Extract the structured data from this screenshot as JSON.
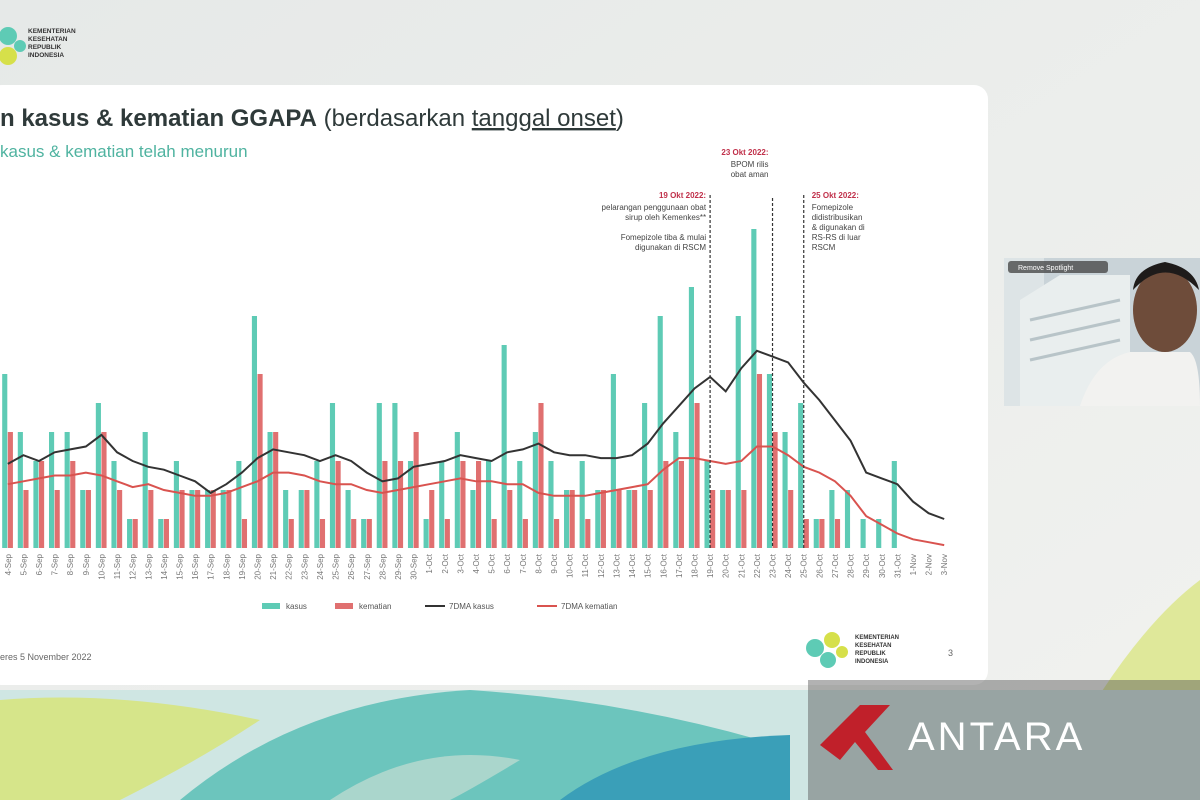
{
  "logo": {
    "lines": [
      "KEMENTERIAN",
      "KESEHATAN",
      "REPUBLIK",
      "INDONESIA"
    ]
  },
  "slide": {
    "title_bold": "n kasus & kematian GGAPA",
    "title_pre": "(berdasarkan",
    "title_underline": "tanggal onset",
    "title_post": ")",
    "subtitle": "kasus & kematian telah menurun",
    "footer": "eres 5 November 2022",
    "page": "3"
  },
  "video": {
    "label": "Remove Spotlight"
  },
  "watermark": {
    "text": "ANTARA"
  },
  "chart_data": {
    "type": "bar",
    "categories": [
      "4-Sep",
      "5-Sep",
      "6-Sep",
      "7-Sep",
      "8-Sep",
      "9-Sep",
      "10-Sep",
      "11-Sep",
      "12-Sep",
      "13-Sep",
      "14-Sep",
      "15-Sep",
      "16-Sep",
      "17-Sep",
      "18-Sep",
      "19-Sep",
      "20-Sep",
      "21-Sep",
      "22-Sep",
      "23-Sep",
      "24-Sep",
      "25-Sep",
      "26-Sep",
      "27-Sep",
      "28-Sep",
      "29-Sep",
      "30-Sep",
      "1-Oct",
      "2-Oct",
      "3-Oct",
      "4-Oct",
      "5-Oct",
      "6-Oct",
      "7-Oct",
      "8-Oct",
      "9-Oct",
      "10-Oct",
      "11-Oct",
      "12-Oct",
      "13-Oct",
      "14-Oct",
      "15-Oct",
      "16-Oct",
      "17-Oct",
      "18-Oct",
      "19-Oct",
      "20-Oct",
      "21-Oct",
      "22-Oct",
      "23-Oct",
      "24-Oct",
      "25-Oct",
      "26-Oct",
      "27-Oct",
      "28-Oct",
      "29-Oct",
      "30-Oct",
      "31-Oct",
      "1-Nov",
      "2-Nov",
      "3-Nov"
    ],
    "ylim": [
      0,
      12
    ],
    "series": [
      {
        "name": "kasus",
        "type": "bar",
        "color": "#5ecbb5",
        "values": [
          6,
          4,
          3,
          4,
          4,
          2,
          5,
          3,
          1,
          4,
          1,
          3,
          2,
          2,
          2,
          3,
          8,
          4,
          2,
          2,
          3,
          5,
          2,
          1,
          5,
          5,
          3,
          1,
          3,
          4,
          2,
          3,
          7,
          3,
          4,
          3,
          2,
          3,
          2,
          6,
          2,
          5,
          8,
          4,
          9,
          3,
          2,
          8,
          11,
          6,
          4,
          5,
          1,
          2,
          2,
          1,
          1,
          3,
          0,
          0,
          0
        ]
      },
      {
        "name": "kematian",
        "type": "bar",
        "color": "#e07070",
        "values": [
          4,
          2,
          3,
          2,
          3,
          2,
          4,
          2,
          1,
          2,
          1,
          2,
          2,
          2,
          2,
          1,
          6,
          4,
          1,
          2,
          1,
          3,
          1,
          1,
          3,
          3,
          4,
          2,
          1,
          3,
          3,
          1,
          2,
          1,
          5,
          1,
          2,
          1,
          2,
          2,
          2,
          2,
          3,
          3,
          5,
          2,
          2,
          2,
          6,
          4,
          2,
          1,
          1,
          1,
          0,
          0,
          0,
          0,
          0,
          0,
          0
        ]
      },
      {
        "name": "7DMA kasus",
        "type": "line",
        "color": "#333333",
        "values": [
          2.9,
          3.2,
          3.0,
          3.3,
          3.4,
          3.5,
          3.9,
          3.3,
          3.0,
          2.8,
          2.7,
          2.5,
          2.3,
          1.9,
          2.2,
          2.6,
          3.1,
          3.4,
          3.3,
          3.2,
          3.0,
          3.2,
          3.0,
          2.6,
          2.3,
          2.4,
          2.8,
          2.9,
          3.0,
          3.2,
          3.1,
          3.0,
          3.3,
          3.4,
          3.6,
          3.3,
          3.2,
          3.2,
          3.1,
          3.1,
          3.2,
          3.6,
          4.3,
          4.9,
          5.5,
          5.9,
          5.4,
          6.2,
          6.8,
          6.6,
          6.4,
          5.7,
          5.1,
          4.4,
          3.7,
          2.6,
          2.4,
          2.2,
          1.6,
          1.2,
          1.0
        ]
      },
      {
        "name": "7DMA kematian",
        "type": "line",
        "color": "#d9534f",
        "values": [
          2.2,
          2.3,
          2.4,
          2.5,
          2.5,
          2.6,
          2.5,
          2.3,
          2.1,
          2.2,
          2.0,
          1.9,
          1.8,
          1.8,
          1.9,
          2.1,
          2.3,
          2.6,
          2.6,
          2.5,
          2.3,
          2.2,
          2.2,
          2.0,
          1.9,
          2.0,
          2.1,
          2.2,
          2.3,
          2.4,
          2.3,
          2.3,
          2.2,
          2.2,
          1.9,
          1.8,
          1.8,
          1.8,
          1.9,
          2.0,
          2.1,
          2.2,
          2.7,
          3.1,
          3.1,
          3.0,
          2.9,
          3.0,
          3.5,
          3.5,
          3.2,
          2.8,
          2.6,
          2.3,
          1.8,
          1.1,
          0.8,
          0.5,
          0.3,
          0.2,
          0.1
        ]
      }
    ],
    "annotations": [
      {
        "x": "19-Oct",
        "date": "19 Okt 2022:",
        "lines": [
          "pelarangan penggunaan obat",
          "sirup oleh Kemenkes**",
          "",
          "Fomepizole tiba & mulai",
          "digunakan di RSCM"
        ]
      },
      {
        "x": "23-Oct",
        "date": "23 Okt 2022:",
        "lines": [
          "BPOM rilis",
          "obat aman"
        ]
      },
      {
        "x": "25-Oct",
        "date": "25 Okt 2022:",
        "lines": [
          "Fomepizole",
          "didistribusikan",
          "& digunakan di",
          "RS-RS di luar",
          "RSCM"
        ]
      }
    ]
  }
}
